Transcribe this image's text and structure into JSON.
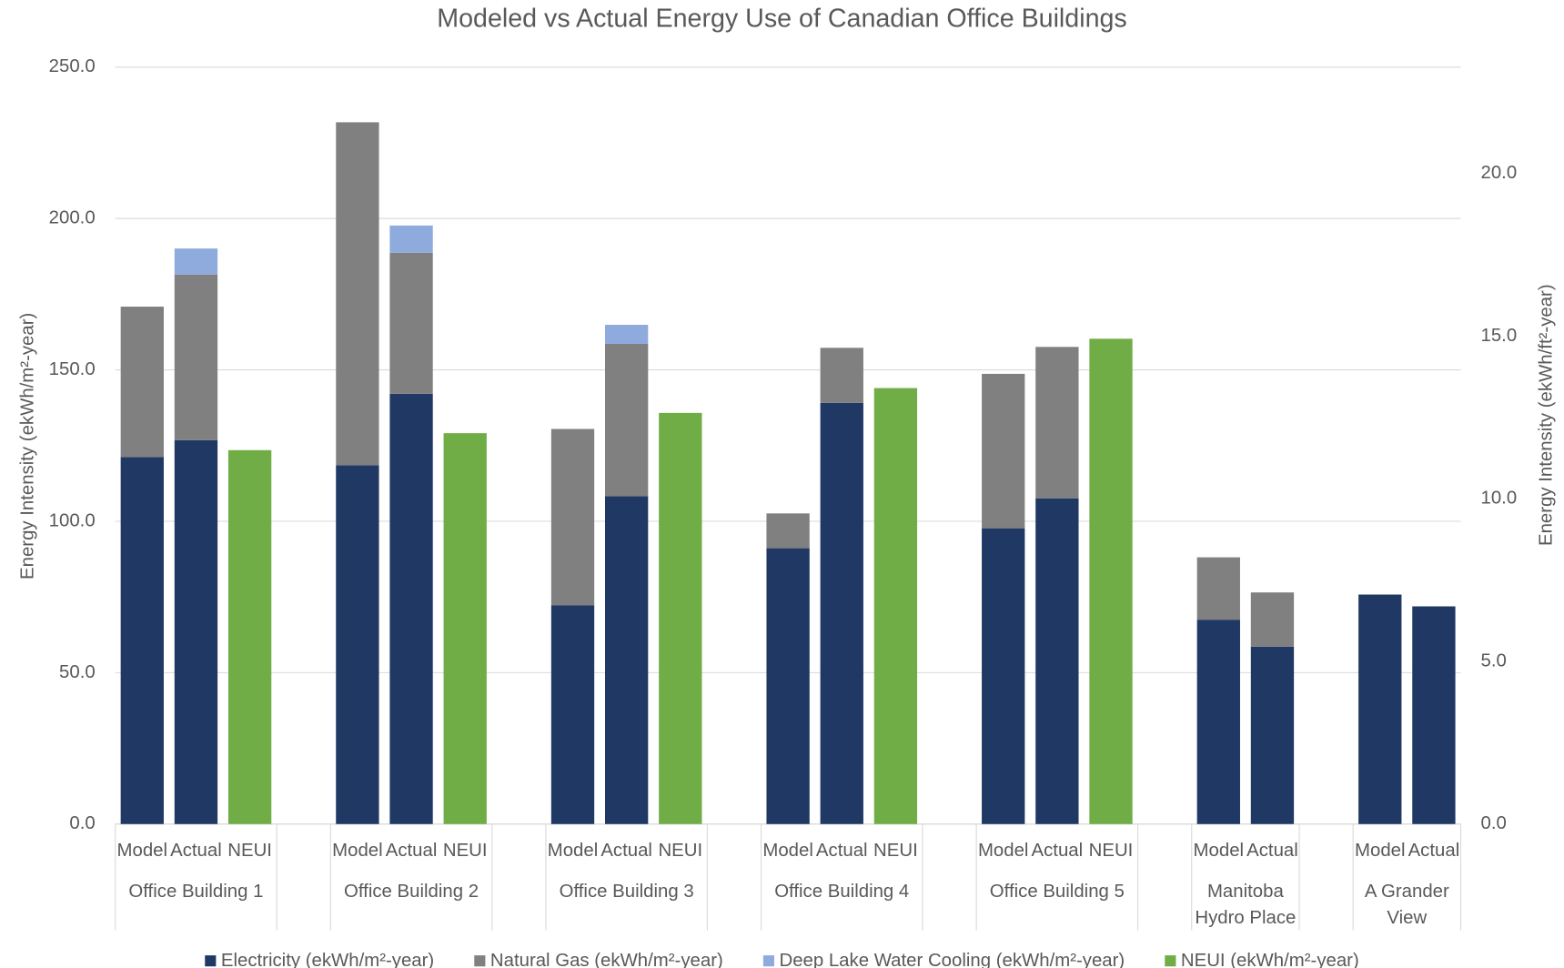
{
  "chart_data": {
    "type": "stacked_bar",
    "title": "Modeled vs Actual Energy Use of Canadian Office Buildings",
    "y_label": "Energy Intensity (ekWh/m²-year)",
    "y2_label": "Energy Intensity (ekWh/ft²-year)",
    "groups": [
      {
        "name": "Office Building 1",
        "categories": [
          "Model",
          "Actual",
          "NEUI"
        ]
      },
      {
        "name": "Office Building 2",
        "categories": [
          "Model",
          "Actual",
          "NEUI"
        ]
      },
      {
        "name": "Office Building 3",
        "categories": [
          "Model",
          "Actual",
          "NEUI"
        ]
      },
      {
        "name": "Office Building 4",
        "categories": [
          "Model",
          "Actual",
          "NEUI"
        ]
      },
      {
        "name": "Office Building 5",
        "categories": [
          "Model",
          "Actual",
          "NEUI"
        ]
      },
      {
        "name": "Manitoba Hydro Place",
        "categories": [
          "Model",
          "Actual"
        ]
      },
      {
        "name": "A Grander View",
        "categories": [
          "Model",
          "Actual"
        ]
      }
    ],
    "series": [
      {
        "name": "Electricity (ekWh/m²-year)",
        "color": "#203864",
        "values": [
          121.2,
          126.8,
          null,
          118.5,
          142.1,
          null,
          72.2,
          108.3,
          null,
          91.1,
          139.1,
          null,
          97.7,
          107.6,
          null,
          67.5,
          58.6,
          75.8,
          71.9
        ]
      },
      {
        "name": "Natural Gas (ekWh/m²-year)",
        "color": "#808080",
        "values": [
          49.7,
          54.7,
          null,
          113.3,
          46.6,
          null,
          58.3,
          50.3,
          null,
          11.5,
          18.2,
          null,
          51.0,
          50.0,
          null,
          20.6,
          17.9,
          null,
          null
        ]
      },
      {
        "name": "Deep Lake Water Cooling (ekWh/m²-year)",
        "color": "#8faadc",
        "values": [
          null,
          8.6,
          null,
          null,
          9.0,
          null,
          null,
          6.3,
          null,
          null,
          null,
          null,
          null,
          null,
          null,
          null,
          null,
          null,
          null
        ]
      },
      {
        "name": "NEUI (ekWh/m²-year)",
        "color": "#70ad47",
        "values": [
          null,
          null,
          123.5,
          null,
          null,
          129.1,
          null,
          null,
          135.8,
          null,
          null,
          144.0,
          null,
          null,
          160.3,
          null,
          null,
          null,
          null
        ]
      }
    ],
    "ylim": [
      0,
      250
    ],
    "yticks": [
      {
        "value": 0,
        "label": "0.0"
      },
      {
        "value": 50,
        "label": "50.0"
      },
      {
        "value": 100,
        "label": "100.0"
      },
      {
        "value": 150,
        "label": "150.0"
      },
      {
        "value": 200,
        "label": "200.0"
      },
      {
        "value": 250,
        "label": "250.0"
      }
    ],
    "y2lim": [
      0,
      23.27
    ],
    "y2ticks": [
      {
        "value": 0,
        "label": "0.0"
      },
      {
        "value": 5,
        "label": "5.0"
      },
      {
        "value": 10,
        "label": "10.0"
      },
      {
        "value": 15,
        "label": "15.0"
      },
      {
        "value": 20,
        "label": "20.0"
      }
    ],
    "grid": true,
    "legend": "bottom"
  }
}
